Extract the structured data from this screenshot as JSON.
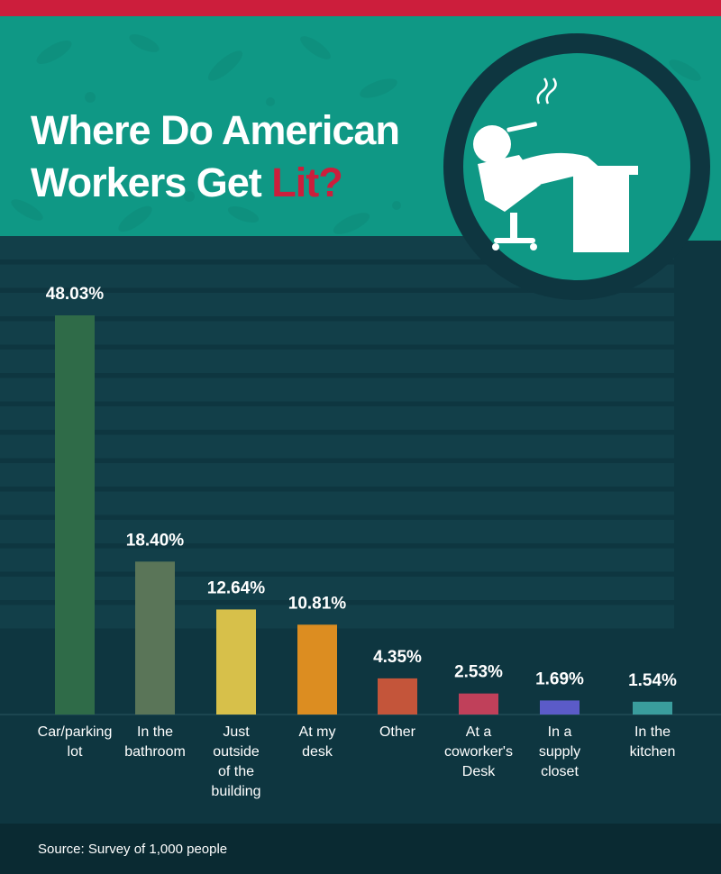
{
  "title": {
    "line1": "Where Do American",
    "line2_main": "Workers Get ",
    "line2_accent": "Lit?"
  },
  "source": "Source: Survey of 1,000 people",
  "icon": "smoking-office-worker-icon",
  "colors": {
    "top_strip": "#cc1e3c",
    "header": "#0f9885",
    "background": "#0e3640",
    "accent": "#cc1e3c"
  },
  "chart_data": {
    "type": "bar",
    "title": "Where Do American Workers Get Lit?",
    "categories": [
      [
        "Car/parking",
        "lot"
      ],
      [
        "In the",
        "bathroom"
      ],
      [
        "Just",
        "outside",
        "of the",
        "building"
      ],
      [
        "At my",
        "desk"
      ],
      [
        "Other"
      ],
      [
        "At a",
        "coworker's",
        "Desk"
      ],
      [
        "In a",
        "supply",
        "closet"
      ],
      [
        "In the",
        "kitchen"
      ]
    ],
    "values": [
      48.03,
      18.4,
      12.64,
      10.81,
      4.35,
      2.53,
      1.69,
      1.54
    ],
    "value_labels": [
      "48.03%",
      "18.40%",
      "12.64%",
      "10.81%",
      "4.35%",
      "2.53%",
      "1.69%",
      "1.54%"
    ],
    "colors": [
      "#2f6b48",
      "#5a7558",
      "#d7c04a",
      "#dc8d21",
      "#c4553a",
      "#c0405a",
      "#5b5bc8",
      "#3a9d9d"
    ],
    "ylim": [
      0,
      48.03
    ],
    "grid": true,
    "legend": "none"
  }
}
